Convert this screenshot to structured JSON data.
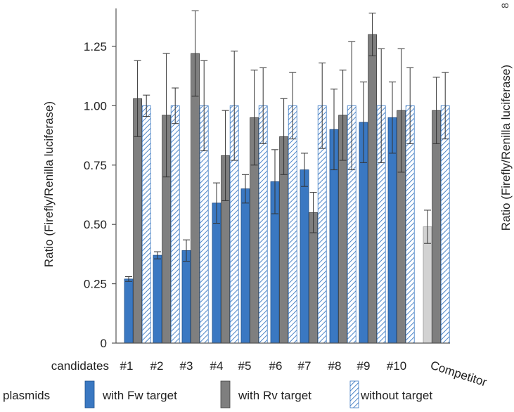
{
  "chart_data": {
    "type": "bar",
    "ylabel": "Ratio (Firefly/Renilla luciferase)",
    "right_panel_ylabel_fragment": "Ratio (Firefly/Renilla luciferase)",
    "right_panel_corner_mark": "8",
    "ylim": [
      0,
      1.45
    ],
    "yticks": [
      "0",
      "0.25",
      "0.50",
      "0.75",
      "1.00",
      "1.25"
    ],
    "ytick_values": [
      0,
      0.25,
      0.5,
      0.75,
      1.0,
      1.25
    ],
    "x_axis_prefix": "candidates",
    "categories": [
      "#1",
      "#2",
      "#3",
      "#4",
      "#5",
      "#6",
      "#7",
      "#8",
      "#9",
      "#10",
      "Competitor"
    ],
    "legend_title": "plasmids",
    "series": [
      {
        "name": "with Fw target",
        "color": "#3a78c2",
        "values": [
          0.27,
          0.37,
          0.39,
          0.59,
          0.65,
          0.68,
          0.73,
          0.9,
          0.93,
          0.95,
          0.49
        ],
        "errors": [
          0.01,
          0.015,
          0.045,
          0.085,
          0.06,
          0.135,
          0.07,
          0.17,
          0.17,
          0.15,
          0.07
        ]
      },
      {
        "name": "with Rv target",
        "color": "#7f7f7f",
        "values": [
          1.03,
          0.96,
          1.22,
          0.79,
          0.95,
          0.87,
          0.55,
          0.96,
          1.3,
          0.98,
          0.98
        ],
        "errors": [
          0.16,
          0.26,
          0.18,
          0.19,
          0.2,
          0.16,
          0.085,
          0.19,
          0.09,
          0.26,
          0.14
        ]
      },
      {
        "name": "without target",
        "color": "#3a78c2",
        "pattern": "hatched",
        "values": [
          1.0,
          1.0,
          1.0,
          1.0,
          1.0,
          1.0,
          1.0,
          1.0,
          1.0,
          1.0,
          1.0
        ],
        "errors": [
          0.045,
          0.075,
          0.19,
          0.23,
          0.16,
          0.14,
          0.18,
          0.27,
          0.24,
          0.16,
          0.14
        ]
      }
    ],
    "competitor_fw_color": "#d2d2d2",
    "grid": false
  }
}
